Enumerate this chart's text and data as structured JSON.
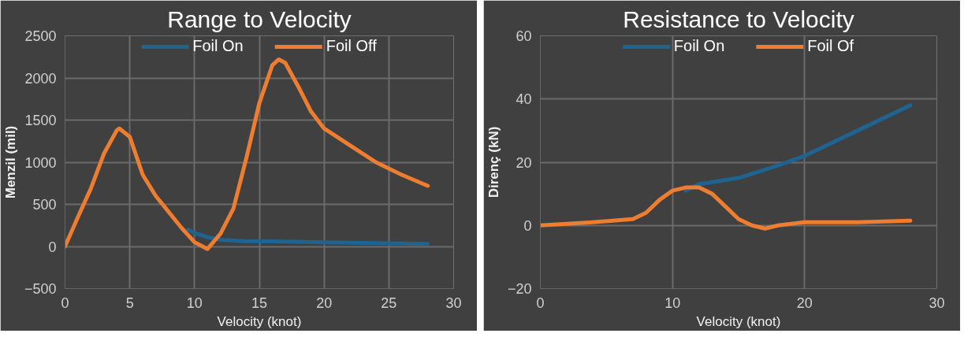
{
  "chart_data": [
    {
      "type": "line",
      "title": "Range to Velocity",
      "xlabel": "Velocity (knot)",
      "ylabel": "Menzil (mil)",
      "xlim": [
        0,
        30
      ],
      "ylim": [
        -500,
        2500
      ],
      "xticks": [
        0,
        5,
        10,
        15,
        20,
        25,
        30
      ],
      "yticks": [
        -500,
        0,
        500,
        1000,
        1500,
        2000,
        2500
      ],
      "grid": true,
      "legend": "top",
      "marker": "none",
      "line_style": "solid",
      "series": [
        {
          "name": "Foil On",
          "color": "#1f6391",
          "x": [
            9.5,
            10,
            11,
            12,
            14,
            16,
            20,
            24,
            28
          ],
          "values": [
            200,
            160,
            110,
            80,
            60,
            60,
            50,
            40,
            30
          ]
        },
        {
          "name": "Foil Off",
          "color": "#ed7d31",
          "x": [
            0,
            1,
            2,
            3,
            4,
            4.2,
            5,
            6,
            7,
            8,
            9,
            10,
            11,
            12,
            13,
            14,
            15,
            16,
            16.5,
            17,
            18,
            19,
            20,
            22,
            24,
            26,
            28
          ],
          "values": [
            0,
            350,
            690,
            1100,
            1380,
            1400,
            1300,
            850,
            600,
            410,
            220,
            50,
            -30,
            150,
            450,
            1050,
            1700,
            2150,
            2220,
            2180,
            1900,
            1600,
            1400,
            1200,
            1000,
            850,
            720
          ]
        }
      ]
    },
    {
      "type": "line",
      "title": "Resistance to Velocity",
      "xlabel": "Velocity (knot)",
      "ylabel": "Direnç (kN)",
      "xlim": [
        0,
        30
      ],
      "ylim": [
        -20,
        60
      ],
      "xticks": [
        0,
        10,
        20,
        30
      ],
      "yticks": [
        -20,
        0,
        20,
        40,
        60
      ],
      "grid": true,
      "legend": "top",
      "marker": "none",
      "line_style": "solid",
      "series": [
        {
          "name": "Foil On",
          "color": "#1f6391",
          "x": [
            11,
            12,
            15,
            18,
            20,
            24,
            28
          ],
          "values": [
            11,
            13,
            15,
            19,
            22,
            30,
            38
          ]
        },
        {
          "name": "Foil Of",
          "color": "#ed7d31",
          "x": [
            0,
            4,
            7,
            8,
            9,
            10,
            11,
            12,
            13,
            14,
            15,
            16,
            17,
            18,
            20,
            24,
            28
          ],
          "values": [
            0,
            1,
            2,
            4,
            8,
            11,
            12,
            12,
            10,
            6,
            2,
            0,
            -1,
            0,
            1,
            1,
            1.5
          ]
        }
      ]
    }
  ]
}
